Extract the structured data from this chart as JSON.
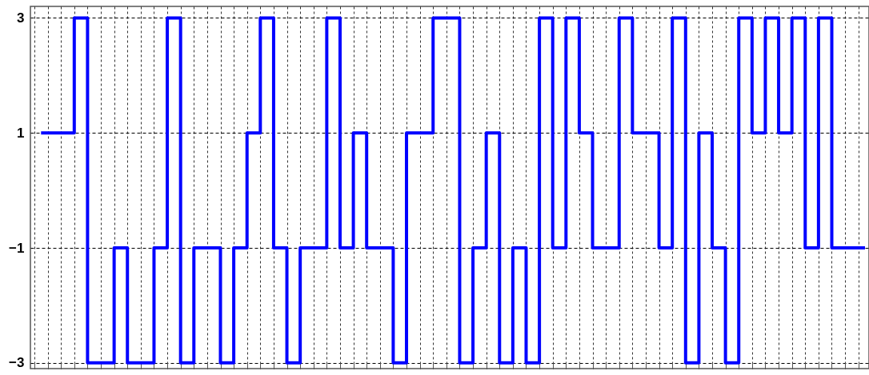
{
  "chart_data": {
    "type": "step",
    "categories": [
      null,
      null,
      null,
      null,
      null,
      null,
      null,
      null,
      null,
      null,
      null,
      null,
      null,
      null,
      null,
      null,
      null,
      null,
      null,
      null,
      null,
      null,
      null,
      null,
      null,
      null,
      null,
      null,
      null,
      null,
      null,
      null,
      null,
      null,
      null,
      null,
      null,
      null,
      null,
      null,
      null,
      null,
      null,
      null,
      null,
      null,
      null,
      null,
      null,
      null,
      null,
      null,
      null,
      null,
      null,
      null,
      null,
      null,
      null,
      null,
      null,
      null,
      null
    ],
    "series": [
      {
        "color": "#0000ff",
        "values": [
          1,
          1,
          1,
          3,
          -3,
          -3,
          -1,
          -3,
          -3,
          -1,
          3,
          -3,
          -1,
          -1,
          -3,
          -1,
          1,
          3,
          -1,
          -3,
          -1,
          -1,
          3,
          -1,
          1,
          -1,
          -1,
          -3,
          1,
          1,
          3,
          3,
          -3,
          -1,
          1,
          -3,
          -1,
          -3,
          3,
          -1,
          3,
          1,
          -1,
          -1,
          3,
          1,
          1,
          -1,
          3,
          -3,
          1,
          -1,
          -3,
          3,
          1,
          3,
          1,
          3,
          -1,
          3,
          -1,
          -1,
          -1
        ]
      }
    ],
    "ylim": [
      -3.1,
      3.2
    ],
    "yticks": [
      -3,
      -1,
      1,
      3
    ],
    "grid": true,
    "tick_labels": "y",
    "line_style": "solid",
    "marker": "none"
  }
}
